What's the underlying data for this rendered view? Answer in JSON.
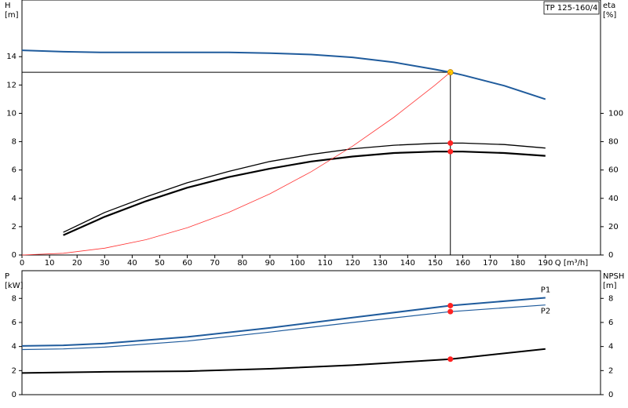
{
  "chart_data": [
    {
      "type": "line",
      "title": "TP 125-160/4",
      "x_label": "Q [m³/h]",
      "y_label": "H",
      "y_unit": "[m]",
      "y2_label": "eta",
      "y2_unit": "[%]",
      "x": [
        0,
        15,
        30,
        45,
        60,
        75,
        90,
        105,
        120,
        135,
        150,
        155.5,
        160,
        175,
        190
      ],
      "xlim": [
        0,
        210
      ],
      "xticks": [
        0,
        10,
        20,
        30,
        40,
        50,
        60,
        70,
        80,
        90,
        100,
        110,
        120,
        130,
        140,
        150,
        160,
        170,
        180,
        190
      ],
      "ylim": [
        0,
        18
      ],
      "yticks": [
        0,
        2,
        4,
        6,
        8,
        10,
        12,
        14
      ],
      "y2lim": [
        0,
        180
      ],
      "y2ticks": [
        0,
        20,
        40,
        60,
        80,
        100
      ],
      "series": [
        {
          "color": "#1f5b9c",
          "line_width": 2,
          "marker_color": "#ffcc00",
          "values": [
            14.45,
            14.35,
            14.3,
            14.3,
            14.3,
            14.3,
            14.25,
            14.15,
            13.95,
            13.6,
            13.1,
            12.9,
            12.7,
            11.95,
            11.0
          ]
        },
        {
          "color": "#000000",
          "line_width": 1.3,
          "axis": "y2",
          "marker_color": "#ff2222",
          "values": [
            null,
            16,
            30,
            41,
            51,
            59,
            66,
            71,
            75,
            77.5,
            78.8,
            79,
            79,
            78,
            75.5
          ]
        },
        {
          "color": "#000000",
          "line_width": 2.2,
          "axis": "y2",
          "marker_color": "#ff2222",
          "values": [
            null,
            14,
            27,
            38,
            47.5,
            55,
            61,
            66,
            69.5,
            72,
            73,
            73,
            73,
            72,
            70
          ]
        },
        {
          "color": "#ff3333",
          "line_width": 0.8,
          "system_curve": true,
          "values": [
            0,
            0.12,
            0.48,
            1.08,
            1.92,
            3.0,
            4.32,
            5.88,
            7.68,
            9.72,
            12.0,
            12.9,
            null,
            null,
            null
          ]
        }
      ]
    },
    {
      "type": "line",
      "y_label": "P",
      "y_unit": "[kW]",
      "y2_label": "NPSH",
      "y2_unit": "[m]",
      "x": [
        0,
        15,
        30,
        60,
        90,
        120,
        155.5,
        190
      ],
      "xlim": [
        0,
        210
      ],
      "ylim": [
        0,
        10.3
      ],
      "yticks": [
        0,
        2,
        4,
        6,
        8
      ],
      "y2lim": [
        0,
        10.3
      ],
      "y2ticks": [
        0,
        2,
        4,
        6,
        8
      ],
      "series": [
        {
          "name": "P1",
          "color": "#1f5b9c",
          "line_width": 2,
          "marker_color": "#ff2222",
          "values": [
            4.05,
            4.1,
            4.25,
            4.8,
            5.55,
            6.4,
            7.4,
            8.05
          ]
        },
        {
          "name": "P2",
          "color": "#1f5b9c",
          "line_width": 1.2,
          "marker_color": "#ff2222",
          "values": [
            3.75,
            3.8,
            3.95,
            4.45,
            5.2,
            6.0,
            6.9,
            7.45
          ]
        },
        {
          "color": "#000000",
          "line_width": 2,
          "axis": "y2",
          "marker_color": "#ff2222",
          "values": [
            1.8,
            1.85,
            1.9,
            1.95,
            2.15,
            2.45,
            2.95,
            3.8
          ]
        }
      ]
    }
  ]
}
